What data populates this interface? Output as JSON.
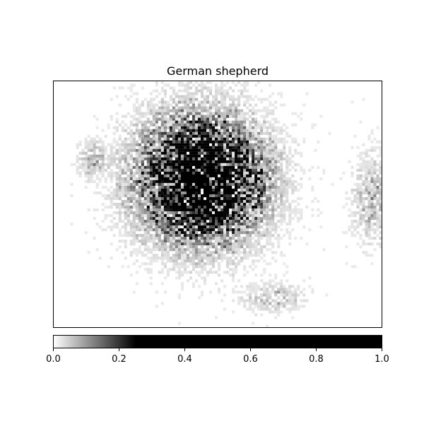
{
  "chart_data": {
    "type": "heatmap",
    "title": "German shepherd",
    "xlabel": "",
    "ylabel": "",
    "colormap": "gray_r",
    "value_range": [
      0,
      1
    ],
    "heatmap_axes": {
      "x_ticks": false,
      "y_ticks": false
    },
    "intensity_regions": [
      {
        "region": "main-blob",
        "cx": 0.45,
        "cy": 0.4,
        "rx": 0.15,
        "ry": 0.2,
        "peak": 0.9
      },
      {
        "region": "left-faint-patch",
        "cx": 0.12,
        "cy": 0.32,
        "rx": 0.035,
        "ry": 0.06,
        "peak": 0.12
      },
      {
        "region": "right-faint-edge",
        "cx": 0.97,
        "cy": 0.48,
        "rx": 0.05,
        "ry": 0.15,
        "peak": 0.1
      },
      {
        "region": "bottom-faint-spot",
        "cx": 0.67,
        "cy": 0.88,
        "rx": 0.08,
        "ry": 0.05,
        "peak": 0.08
      }
    ],
    "colorbar": {
      "orientation": "horizontal",
      "ticks": [
        0.0,
        0.2,
        0.4,
        0.6,
        0.8,
        1.0
      ],
      "tick_labels": [
        "0.0",
        "0.2",
        "0.4",
        "0.6",
        "0.8",
        "1.0"
      ],
      "saturation_value": 0.25
    }
  },
  "colors": {
    "background": "#ffffff",
    "axis": "#000000",
    "low": "#ffffff",
    "high": "#000000"
  }
}
